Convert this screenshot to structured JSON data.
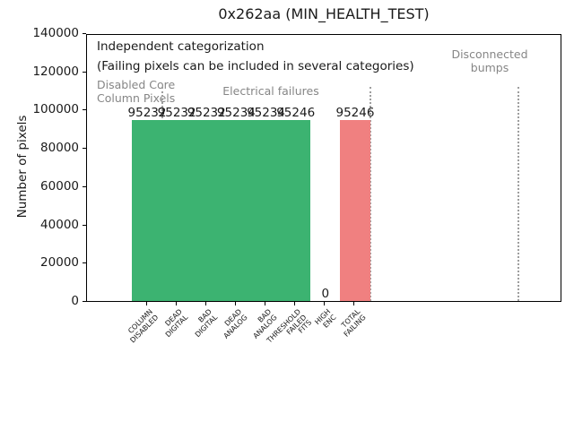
{
  "window": {
    "title": "0x262aa (MIN_HEALTH_TEST)"
  },
  "chart_data": {
    "type": "bar",
    "title": "0x262aa (MIN_HEALTH_TEST)",
    "xlabel": "",
    "ylabel": "Number of pixels",
    "ylim": [
      0,
      140000
    ],
    "yticks": [
      0,
      20000,
      40000,
      60000,
      80000,
      100000,
      120000,
      140000
    ],
    "grid": false,
    "legend": null,
    "categories": [
      "COLUMN\nDISABLED",
      "DEAD\nDIGITAL",
      "BAD\nDIGITAL",
      "DEAD\nANALOG",
      "BAD\nANALOG",
      "THRESHOLD\nFAILED\nFITS",
      "HIGH\nENC",
      "TOTAL\nFAILING"
    ],
    "values": [
      95232,
      95232,
      95232,
      95234,
      95234,
      95246,
      0,
      95246
    ],
    "bar_colors": [
      "#3cb371",
      "#3cb371",
      "#3cb371",
      "#3cb371",
      "#3cb371",
      "#3cb371",
      "#3cb371",
      "#f08080"
    ],
    "separator_positions": [
      0.5,
      7.5,
      12.5
    ],
    "annotations": {
      "header_line1": "Independent categorization",
      "header_line2": "(Failing pixels can be included in several categories)",
      "sections": [
        {
          "label": "Disabled Core\nColumn Pixels"
        },
        {
          "label": "Electrical failures"
        },
        {
          "label": "Disconnected\nbumps"
        }
      ]
    },
    "colors": {
      "bar_green": "#3cb371",
      "bar_red": "#f08080",
      "section_text": "#868686",
      "separator": "#9e9e9e",
      "axis": "#000000"
    }
  }
}
